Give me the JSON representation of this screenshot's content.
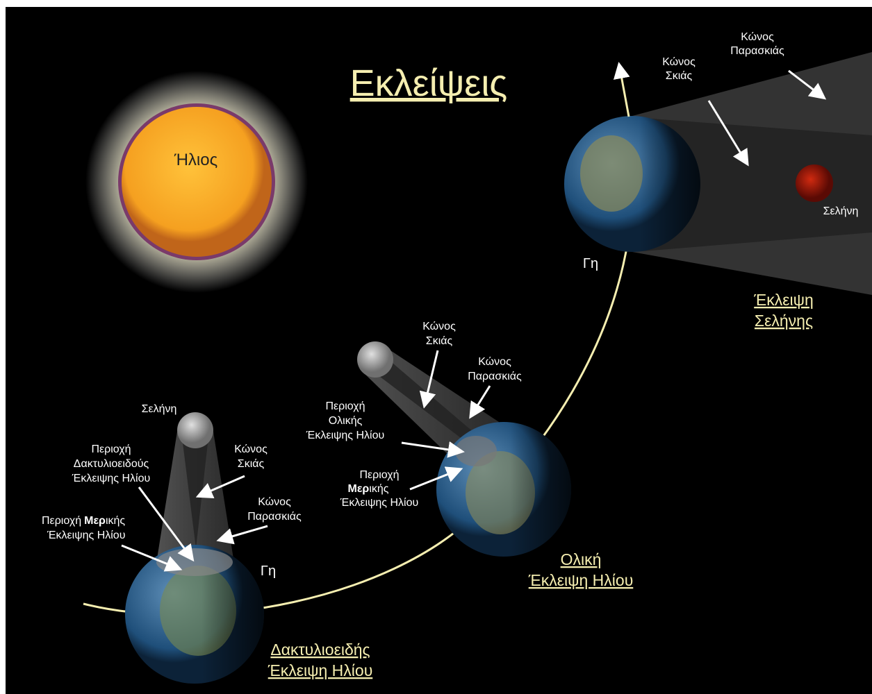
{
  "title": "Εκλείψεις",
  "sun": {
    "label": "Ήλιος"
  },
  "lunar_eclipse": {
    "penumbra_label": [
      "Κώνος",
      "Παρασκιάς"
    ],
    "umbra_label": [
      "Κώνος",
      "Σκιάς"
    ],
    "moon_label": "Σελήνη",
    "earth_label": "Γη",
    "caption": [
      "Έκλειψη",
      "Σελήνης"
    ]
  },
  "total_solar_eclipse": {
    "umbra_label": [
      "Κώνος",
      "Σκιάς"
    ],
    "penumbra_label": [
      "Κώνος",
      "Παρασκιάς"
    ],
    "total_region_label": [
      "Περιοχή",
      "Ολικής",
      "Έκλειψης Ηλίου"
    ],
    "partial_region_label": {
      "first": "Περιοχή",
      "bold": "Μερ",
      "rest": "ικής",
      "last": "Έκλειψης Ηλίου"
    },
    "caption": [
      "Ολική",
      "Έκλειψη Ηλίου"
    ]
  },
  "annular_solar_eclipse": {
    "moon_label": "Σελήνη",
    "annular_region_label": [
      "Περιοχή",
      "Δακτυλιοειδούς",
      "Έκλειψης Ηλίου"
    ],
    "umbra_label": [
      "Κώνος",
      "Σκιάς"
    ],
    "penumbra_label": [
      "Κώνος",
      "Παρασκιάς"
    ],
    "partial_region_label": {
      "first": "Περιοχή",
      "bold": "Μερ",
      "rest": "ικής",
      "last": "Έκλειψης Ηλίου"
    },
    "earth_label": "Γη",
    "caption": [
      "Δακτυλιοειδής",
      "Έκλειψη Ηλίου"
    ]
  }
}
